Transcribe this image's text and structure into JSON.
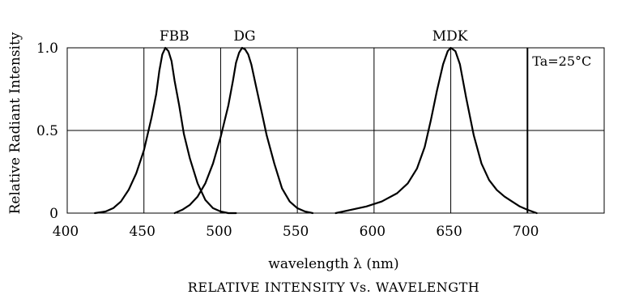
{
  "chart_data": {
    "type": "line",
    "title": "RELATIVE INTENSITY Vs. WAVELENGTH",
    "xlabel": "wavelength λ (nm)",
    "ylabel": "Relative Radiant Intensity",
    "xlim": [
      400,
      750
    ],
    "ylim": [
      0,
      1.0
    ],
    "x_ticks": [
      "400",
      "450",
      "500",
      "550",
      "600",
      "650",
      "700"
    ],
    "y_ticks": [
      "0",
      "0.5",
      "1.0"
    ],
    "grid": true,
    "annotation": "Ta=25°C",
    "series": [
      {
        "name": "FBB",
        "x": [
          418,
          425,
          430,
          435,
          440,
          445,
          450,
          455,
          458,
          460,
          462,
          464,
          466,
          468,
          470,
          473,
          476,
          480,
          485,
          490,
          495,
          500,
          505,
          510
        ],
        "y": [
          0.0,
          0.01,
          0.03,
          0.07,
          0.14,
          0.24,
          0.38,
          0.58,
          0.72,
          0.86,
          0.96,
          1.0,
          0.98,
          0.92,
          0.8,
          0.65,
          0.48,
          0.33,
          0.18,
          0.08,
          0.03,
          0.01,
          0.0,
          0.0
        ]
      },
      {
        "name": "DG",
        "x": [
          470,
          475,
          480,
          485,
          490,
          495,
          500,
          505,
          508,
          510,
          512,
          514,
          516,
          518,
          520,
          523,
          527,
          530,
          535,
          540,
          545,
          550,
          555,
          560
        ],
        "y": [
          0.0,
          0.02,
          0.05,
          0.1,
          0.18,
          0.3,
          0.46,
          0.65,
          0.8,
          0.91,
          0.97,
          1.0,
          0.99,
          0.96,
          0.9,
          0.77,
          0.6,
          0.47,
          0.3,
          0.15,
          0.07,
          0.03,
          0.01,
          0.0
        ]
      },
      {
        "name": "MDK",
        "x": [
          575,
          585,
          595,
          605,
          615,
          622,
          628,
          633,
          637,
          641,
          645,
          648,
          650,
          653,
          656,
          660,
          665,
          670,
          675,
          680,
          685,
          690,
          695,
          700,
          706
        ],
        "y": [
          0.0,
          0.02,
          0.04,
          0.07,
          0.12,
          0.18,
          0.27,
          0.4,
          0.56,
          0.74,
          0.9,
          0.98,
          1.0,
          0.98,
          0.9,
          0.7,
          0.47,
          0.3,
          0.2,
          0.14,
          0.1,
          0.07,
          0.04,
          0.02,
          0.0
        ]
      }
    ]
  }
}
